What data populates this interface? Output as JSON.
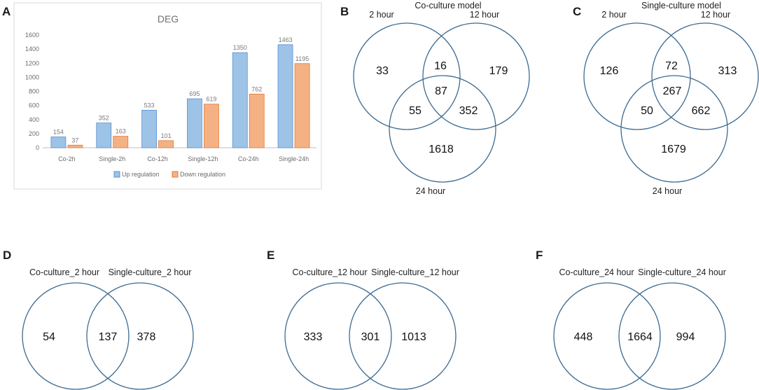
{
  "colors": {
    "up": "#9dc3e6",
    "up_edge": "#5b8fd1",
    "down": "#f4b183",
    "down_edge": "#e07b39",
    "circle": "#3c6a90"
  },
  "panels": {
    "A": "A",
    "B": "B",
    "C": "C",
    "D": "D",
    "E": "E",
    "F": "F"
  },
  "chart_data": {
    "type": "bar",
    "title": "DEG",
    "categories": [
      "Co-2h",
      "Single-2h",
      "Co-12h",
      "Single-12h",
      "Co-24h",
      "Single-24h"
    ],
    "series": [
      {
        "name": "Up regulation",
        "values": [
          154,
          352,
          533,
          695,
          1350,
          1463
        ]
      },
      {
        "name": "Down regulation",
        "values": [
          37,
          163,
          101,
          619,
          762,
          1195
        ]
      }
    ],
    "yticks": [
      "0",
      "200",
      "400",
      "600",
      "800",
      "1000",
      "1200",
      "1400",
      "1600"
    ],
    "ylim": [
      0,
      1600
    ],
    "xlabel": "",
    "ylabel": "",
    "legend": "bottom",
    "grid": false
  },
  "venn_B": {
    "title": "Co-culture model",
    "label_2h": "2 hour",
    "label_12h": "12 hour",
    "label_24h": "24 hour",
    "only_2h": "33",
    "two_twelve": "16",
    "only_12h": "179",
    "all": "87",
    "two_twentyfour": "55",
    "twelve_twentyfour": "352",
    "only_24h": "1618"
  },
  "venn_C": {
    "title": "Single-culture model",
    "label_2h": "2 hour",
    "label_12h": "12 hour",
    "label_24h": "24 hour",
    "only_2h": "126",
    "two_twelve": "72",
    "only_12h": "313",
    "all": "267",
    "two_twentyfour": "50",
    "twelve_twentyfour": "662",
    "only_24h": "1679"
  },
  "venn_D": {
    "left_label": "Co-culture_2 hour",
    "right_label": "Single-culture_2 hour",
    "left": "54",
    "both": "137",
    "right": "378"
  },
  "venn_E": {
    "left_label": "Co-culture_12 hour",
    "right_label": "Single-culture_12 hour",
    "left": "333",
    "both": "301",
    "right": "1013"
  },
  "venn_F": {
    "left_label": "Co-culture_24 hour",
    "right_label": "Single-culture_24 hour",
    "left": "448",
    "both": "1664",
    "right": "994"
  }
}
